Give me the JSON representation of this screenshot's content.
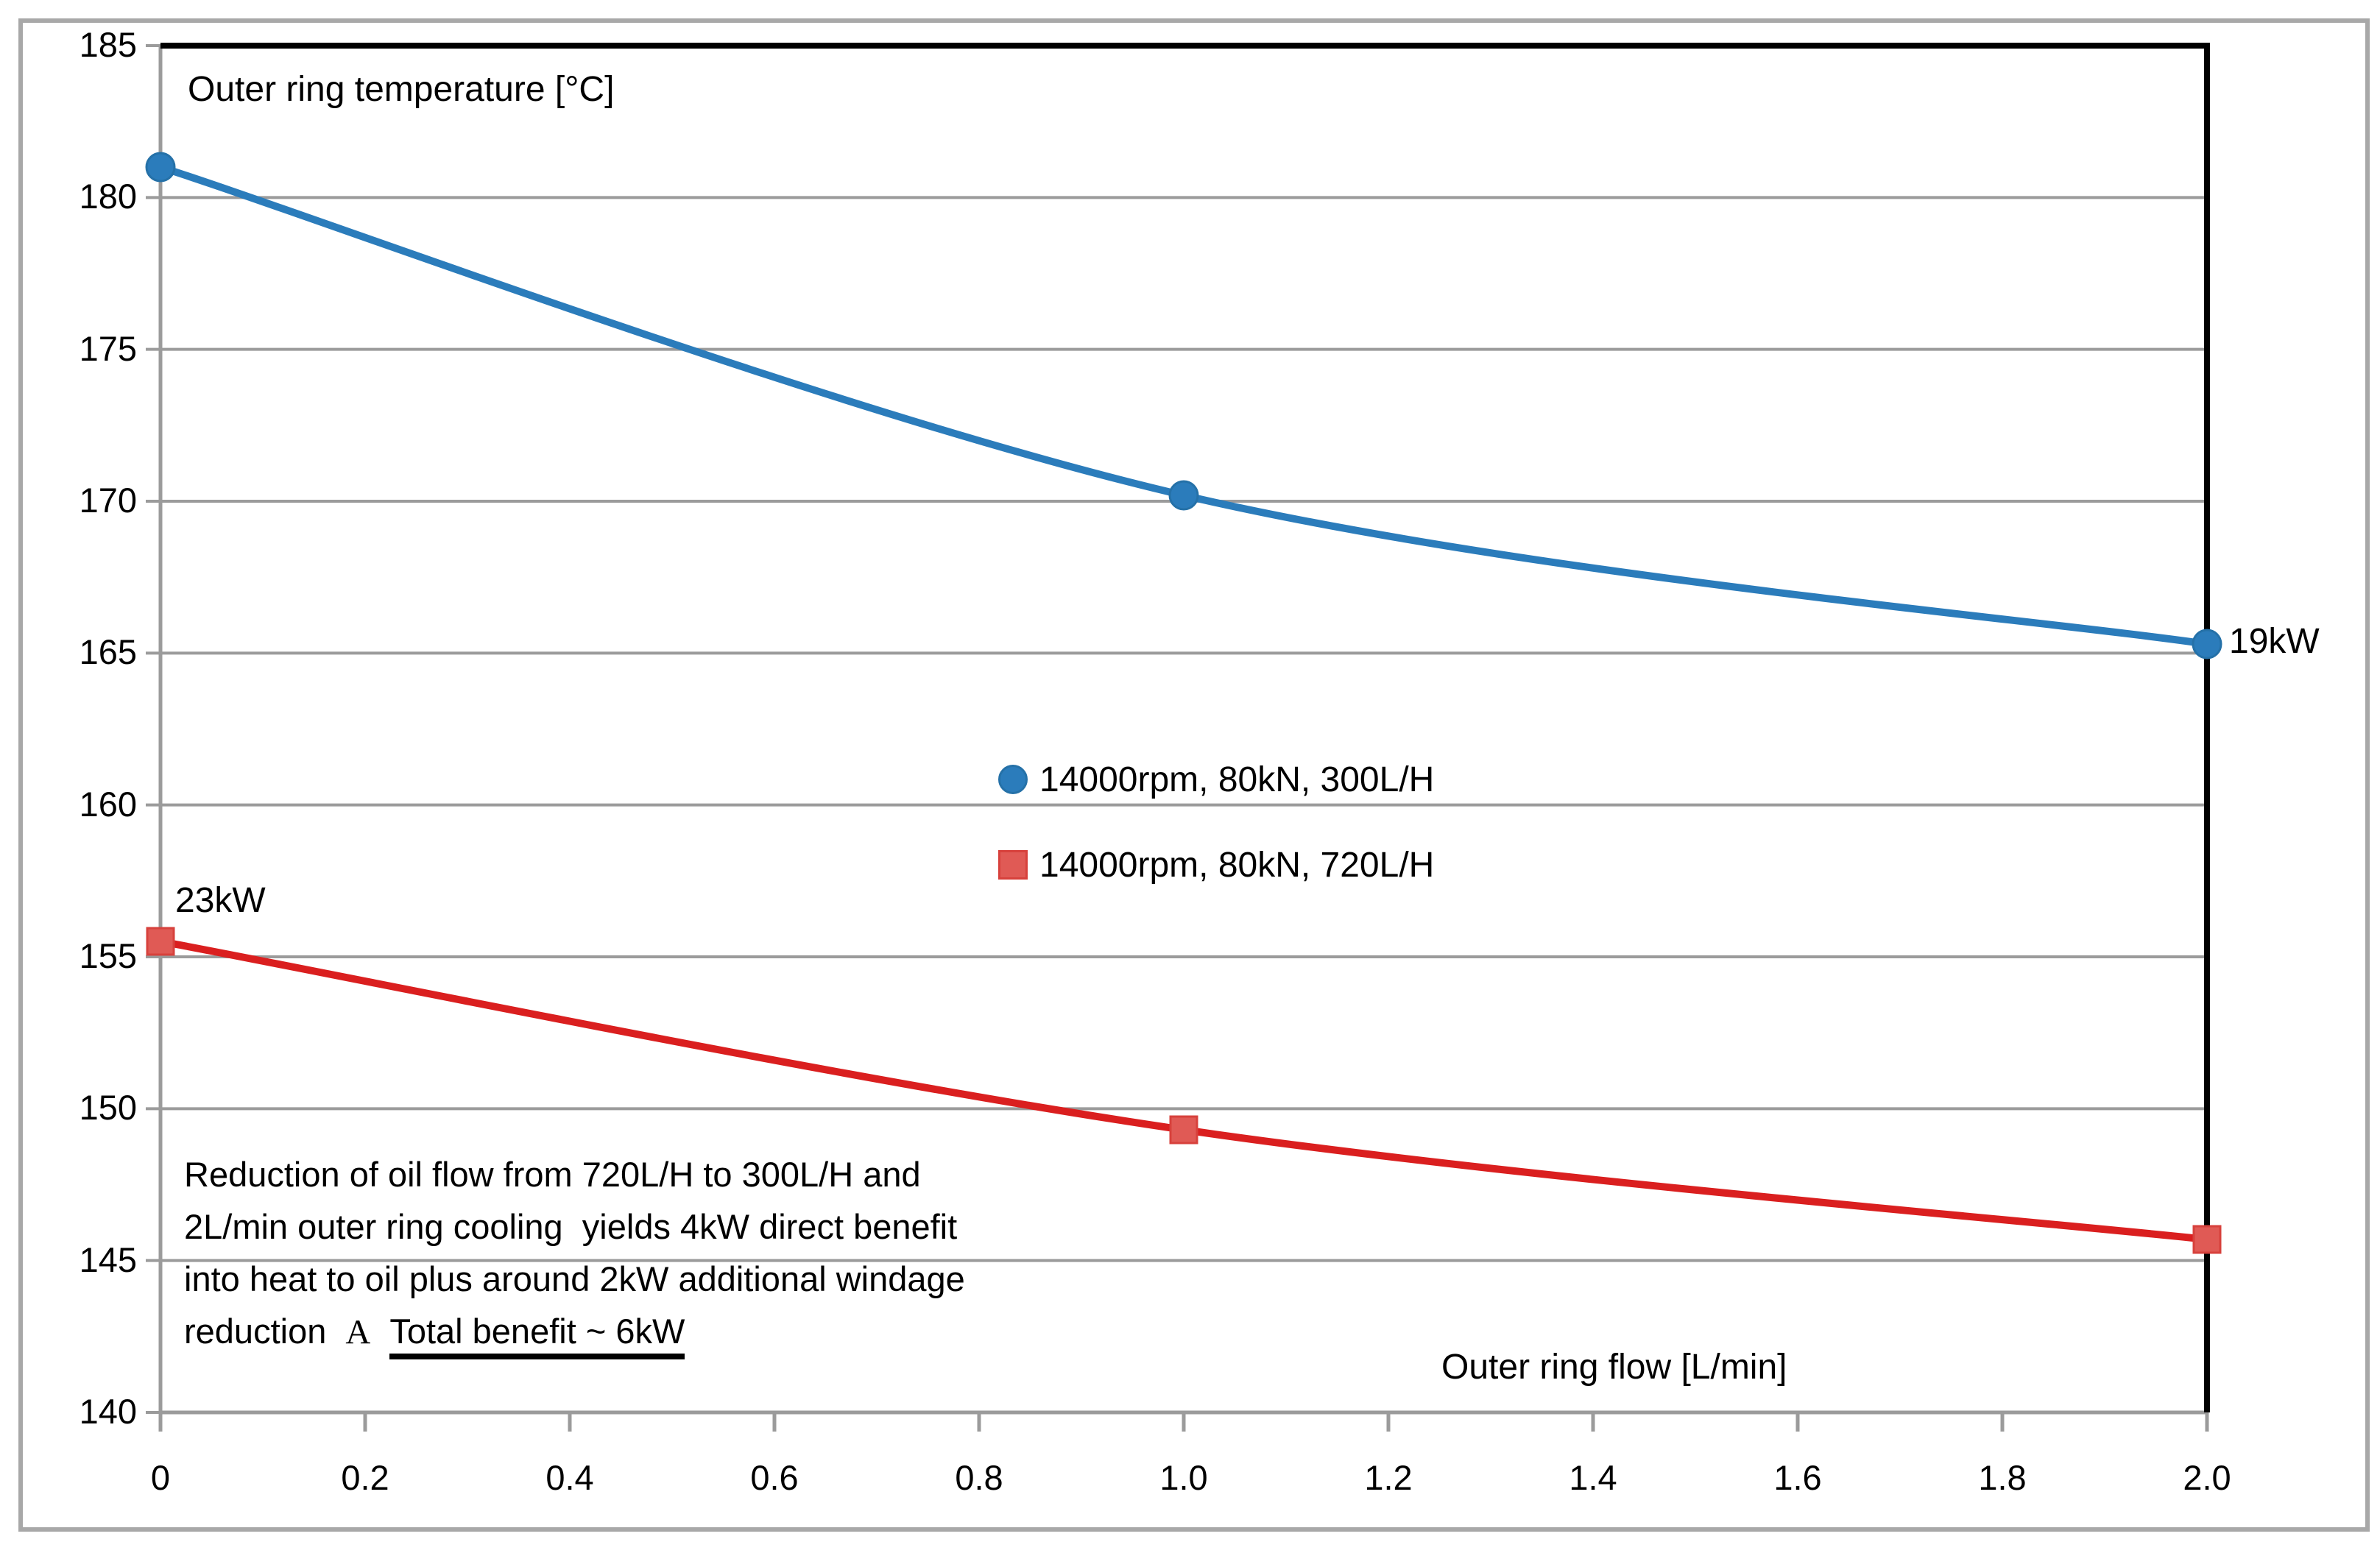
{
  "chart_data": {
    "type": "line",
    "title": "Outer ring temperature [°C]",
    "xlabel": "Outer ring flow [L/min]",
    "ylabel": "Outer ring temperature [°C]",
    "xlim": [
      0,
      2.0
    ],
    "ylim": [
      140,
      185
    ],
    "grid": "horizontal",
    "legend_position": "inside-center",
    "x_ticks": [
      {
        "value": 0.0,
        "label": "0"
      },
      {
        "value": 0.2,
        "label": "0.2"
      },
      {
        "value": 0.4,
        "label": "0.4"
      },
      {
        "value": 0.6,
        "label": "0.6"
      },
      {
        "value": 0.8,
        "label": "0.8"
      },
      {
        "value": 1.0,
        "label": "1.0"
      },
      {
        "value": 1.2,
        "label": "1.2"
      },
      {
        "value": 1.4,
        "label": "1.4"
      },
      {
        "value": 1.6,
        "label": "1.6"
      },
      {
        "value": 1.8,
        "label": "1.8"
      },
      {
        "value": 2.0,
        "label": "2.0"
      }
    ],
    "y_ticks": [
      {
        "value": 185,
        "label": "185"
      },
      {
        "value": 180,
        "label": "180"
      },
      {
        "value": 175,
        "label": "175"
      },
      {
        "value": 170,
        "label": "170"
      },
      {
        "value": 165,
        "label": "165"
      },
      {
        "value": 160,
        "label": "160"
      },
      {
        "value": 155,
        "label": "155"
      },
      {
        "value": 150,
        "label": "150"
      },
      {
        "value": 145,
        "label": "145"
      }
    ],
    "series": [
      {
        "name": "14000rpm, 80kN, 300L/H",
        "marker": "circle",
        "line_color": "#2b7cbb",
        "marker_fill": "#2b7cbb",
        "marker_stroke": "#2571a8",
        "x": [
          0.0,
          1.0,
          2.0
        ],
        "y": [
          181.0,
          170.2,
          165.3
        ],
        "end_label": "19kW"
      },
      {
        "name": "14000rpm, 80kN, 720L/H",
        "marker": "square",
        "line_color": "#da1f1f",
        "marker_fill": "#e05a55",
        "marker_stroke": "#d7413c",
        "x": [
          0.0,
          1.0,
          2.0
        ],
        "y": [
          155.5,
          149.3,
          145.7
        ],
        "start_label": "23kW"
      }
    ],
    "annotations": [
      "23kW",
      "19kW",
      "Reduction of oil flow from 720L/H to 300L/H and\n2L/min outer ring cooling  yields 4kW direct benefit\ninto heat to oil plus around 2kW additional windage\nreduction  A  Total benefit ~ 6kW"
    ]
  },
  "titles": {
    "chart_title": "Outer ring temperature [°C]",
    "x_axis_title": "Outer ring flow [L/min]"
  },
  "legend": {
    "items": [
      {
        "label": "14000rpm, 80kN, 300L/H"
      },
      {
        "label": "14000rpm, 80kN, 720L/H"
      }
    ]
  },
  "point_labels": {
    "red_start": "23kW",
    "blue_end": "19kW"
  },
  "annotation_text": {
    "line1": "Reduction of oil flow from 720L/H to 300L/H and",
    "line2": "2L/min outer ring cooling  yields 4kW direct benefit",
    "line3": "into heat to oil plus around 2kW additional windage",
    "line4_prefix": "reduction",
    "line4_symbol": "A",
    "line4_underlined": "Total benefit ~ 6kW"
  },
  "colors": {
    "blue_series": "#2b7cbb",
    "red_series": "#da1f1f",
    "red_marker_fill": "#e05a55",
    "gridline_gray": "#9b9b9b",
    "axis_gray": "#9b9b9b",
    "plot_border_black": "#000000",
    "outer_border_gray": "#a8a8a8",
    "text_black": "#000000"
  }
}
